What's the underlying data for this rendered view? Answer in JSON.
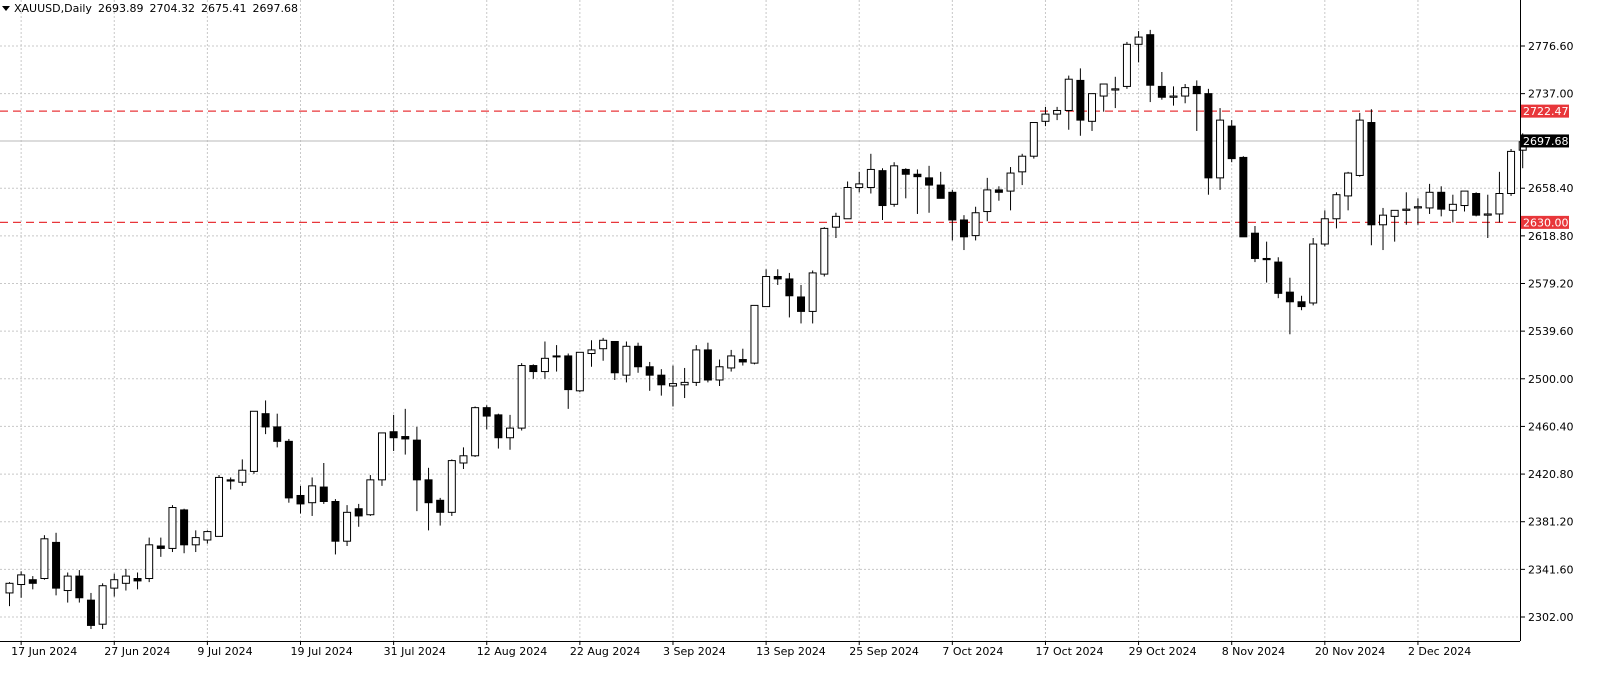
{
  "header": {
    "symbol_timeframe": "XAUUSD,Daily",
    "open": "2693.89",
    "high": "2704.32",
    "low": "2675.41",
    "close": "2697.68"
  },
  "chart_data": {
    "type": "candlestick",
    "symbol": "XAUUSD",
    "timeframe": "Daily",
    "ylim": [
      2285,
      2826
    ],
    "y_ticks": [
      "2776.60",
      "2737.00",
      "2658.40",
      "2618.80",
      "2579.20",
      "2539.60",
      "2500.00",
      "2460.40",
      "2420.80",
      "2381.20",
      "2341.60",
      "2302.00"
    ],
    "x_ticks": [
      "17 Jun 2024",
      "27 Jun 2024",
      "9 Jul 2024",
      "19 Jul 2024",
      "31 Jul 2024",
      "12 Aug 2024",
      "22 Aug 2024",
      "3 Sep 2024",
      "13 Sep 2024",
      "25 Sep 2024",
      "7 Oct 2024",
      "17 Oct 2024",
      "29 Oct 2024",
      "8 Nov 2024",
      "20 Nov 2024",
      "2 Dec 2024"
    ],
    "x_tick_index": [
      1,
      9,
      17,
      25,
      33,
      41,
      49,
      57,
      65,
      73,
      81,
      89,
      97,
      105,
      113,
      121
    ],
    "current_price": {
      "value": 2697.68,
      "label": "2697.68"
    },
    "levels": [
      {
        "value": 2722.47,
        "label": "2722.47",
        "color": "#e8363a"
      },
      {
        "value": 2630.0,
        "label": "2630.00",
        "color": "#e8363a"
      }
    ],
    "grid": true,
    "candles": [
      [
        2322,
        2331,
        2311,
        2330
      ],
      [
        2329,
        2340,
        2318,
        2337
      ],
      [
        2333,
        2336,
        2325,
        2330
      ],
      [
        2334,
        2370,
        2333,
        2367
      ],
      [
        2364,
        2372,
        2320,
        2326
      ],
      [
        2324,
        2339,
        2314,
        2336
      ],
      [
        2336,
        2341,
        2314,
        2318
      ],
      [
        2316,
        2322,
        2292,
        2295
      ],
      [
        2296,
        2330,
        2292,
        2328
      ],
      [
        2326,
        2338,
        2319,
        2333
      ],
      [
        2330,
        2342,
        2324,
        2336
      ],
      [
        2334,
        2339,
        2325,
        2332
      ],
      [
        2334,
        2368,
        2331,
        2362
      ],
      [
        2361,
        2368,
        2352,
        2359
      ],
      [
        2359,
        2395,
        2356,
        2393
      ],
      [
        2391,
        2392,
        2355,
        2362
      ],
      [
        2362,
        2374,
        2356,
        2368
      ],
      [
        2366,
        2374,
        2363,
        2373
      ],
      [
        2369,
        2420,
        2369,
        2418
      ],
      [
        2416,
        2418,
        2408,
        2415
      ],
      [
        2414,
        2433,
        2411,
        2424
      ],
      [
        2423,
        2473,
        2421,
        2473
      ],
      [
        2471,
        2482,
        2454,
        2460
      ],
      [
        2460,
        2471,
        2443,
        2448
      ],
      [
        2448,
        2450,
        2397,
        2401
      ],
      [
        2403,
        2411,
        2388,
        2396
      ],
      [
        2397,
        2418,
        2386,
        2411
      ],
      [
        2410,
        2430,
        2396,
        2398
      ],
      [
        2398,
        2400,
        2354,
        2365
      ],
      [
        2365,
        2395,
        2361,
        2389
      ],
      [
        2392,
        2396,
        2377,
        2386
      ],
      [
        2387,
        2420,
        2386,
        2416
      ],
      [
        2416,
        2454,
        2411,
        2455
      ],
      [
        2456,
        2470,
        2440,
        2451
      ],
      [
        2452,
        2475,
        2437,
        2450
      ],
      [
        2449,
        2460,
        2390,
        2416
      ],
      [
        2416,
        2426,
        2374,
        2397
      ],
      [
        2399,
        2401,
        2378,
        2389
      ],
      [
        2389,
        2433,
        2386,
        2432
      ],
      [
        2430,
        2443,
        2425,
        2436
      ],
      [
        2436,
        2477,
        2435,
        2476
      ],
      [
        2476,
        2478,
        2458,
        2469
      ],
      [
        2470,
        2471,
        2442,
        2451
      ],
      [
        2451,
        2470,
        2441,
        2459
      ],
      [
        2459,
        2513,
        2457,
        2511
      ],
      [
        2511,
        2512,
        2500,
        2506
      ],
      [
        2506,
        2531,
        2500,
        2517
      ],
      [
        2519,
        2528,
        2506,
        2519
      ],
      [
        2519,
        2521,
        2475,
        2491
      ],
      [
        2490,
        2522,
        2489,
        2522
      ],
      [
        2521,
        2532,
        2510,
        2524
      ],
      [
        2525,
        2534,
        2515,
        2532
      ],
      [
        2531,
        2531,
        2499,
        2505
      ],
      [
        2503,
        2531,
        2497,
        2527
      ],
      [
        2527,
        2530,
        2505,
        2510
      ],
      [
        2510,
        2514,
        2490,
        2503
      ],
      [
        2503,
        2508,
        2486,
        2495
      ],
      [
        2494,
        2511,
        2477,
        2496
      ],
      [
        2495,
        2509,
        2484,
        2497
      ],
      [
        2497,
        2528,
        2494,
        2524
      ],
      [
        2524,
        2530,
        2497,
        2499
      ],
      [
        2499,
        2516,
        2494,
        2510
      ],
      [
        2509,
        2524,
        2506,
        2519
      ],
      [
        2516,
        2525,
        2511,
        2514
      ],
      [
        2513,
        2561,
        2512,
        2561
      ],
      [
        2560,
        2591,
        2560,
        2585
      ],
      [
        2585,
        2591,
        2578,
        2583
      ],
      [
        2583,
        2588,
        2551,
        2569
      ],
      [
        2568,
        2578,
        2546,
        2556
      ],
      [
        2556,
        2590,
        2546,
        2588
      ],
      [
        2587,
        2626,
        2585,
        2625
      ],
      [
        2626,
        2638,
        2617,
        2635
      ],
      [
        2633,
        2664,
        2633,
        2659
      ],
      [
        2659,
        2672,
        2655,
        2662
      ],
      [
        2659,
        2687,
        2654,
        2674
      ],
      [
        2673,
        2675,
        2632,
        2644
      ],
      [
        2645,
        2680,
        2643,
        2677
      ],
      [
        2674,
        2675,
        2650,
        2670
      ],
      [
        2670,
        2674,
        2637,
        2668
      ],
      [
        2667,
        2677,
        2638,
        2661
      ],
      [
        2661,
        2672,
        2650,
        2650
      ],
      [
        2655,
        2657,
        2615,
        2632
      ],
      [
        2632,
        2636,
        2607,
        2618
      ],
      [
        2619,
        2643,
        2615,
        2638
      ],
      [
        2639,
        2667,
        2631,
        2657
      ],
      [
        2657,
        2660,
        2648,
        2655
      ],
      [
        2656,
        2676,
        2640,
        2671
      ],
      [
        2672,
        2687,
        2661,
        2685
      ],
      [
        2685,
        2713,
        2683,
        2713
      ],
      [
        2714,
        2726,
        2710,
        2720
      ],
      [
        2720,
        2726,
        2715,
        2723
      ],
      [
        2723,
        2752,
        2707,
        2749
      ],
      [
        2748,
        2758,
        2702,
        2715
      ],
      [
        2714,
        2737,
        2706,
        2737
      ],
      [
        2735,
        2745,
        2722,
        2745
      ],
      [
        2740,
        2751,
        2725,
        2741
      ],
      [
        2743,
        2780,
        2741,
        2778
      ],
      [
        2778,
        2789,
        2763,
        2784
      ],
      [
        2786,
        2790,
        2730,
        2744
      ],
      [
        2743,
        2755,
        2732,
        2734
      ],
      [
        2734,
        2743,
        2727,
        2735
      ],
      [
        2735,
        2745,
        2729,
        2742
      ],
      [
        2743,
        2748,
        2706,
        2737
      ],
      [
        2737,
        2741,
        2653,
        2667
      ],
      [
        2667,
        2725,
        2657,
        2715
      ],
      [
        2710,
        2715,
        2680,
        2683
      ],
      [
        2684,
        2685,
        2623,
        2618
      ],
      [
        2621,
        2627,
        2597,
        2600
      ],
      [
        2600,
        2614,
        2580,
        2599
      ],
      [
        2597,
        2601,
        2567,
        2571
      ],
      [
        2572,
        2584,
        2537,
        2564
      ],
      [
        2564,
        2569,
        2557,
        2560
      ],
      [
        2563,
        2617,
        2561,
        2612
      ],
      [
        2612,
        2640,
        2610,
        2633
      ],
      [
        2633,
        2655,
        2625,
        2653
      ],
      [
        2652,
        2672,
        2640,
        2671
      ],
      [
        2669,
        2721,
        2668,
        2715
      ],
      [
        2713,
        2724,
        2611,
        2628
      ],
      [
        2628,
        2642,
        2607,
        2636
      ],
      [
        2635,
        2639,
        2614,
        2640
      ],
      [
        2640,
        2655,
        2628,
        2641
      ],
      [
        2642,
        2650,
        2628,
        2643
      ],
      [
        2642,
        2662,
        2637,
        2655
      ],
      [
        2655,
        2660,
        2635,
        2641
      ],
      [
        2640,
        2653,
        2630,
        2645
      ],
      [
        2644,
        2652,
        2639,
        2656
      ],
      [
        2654,
        2655,
        2635,
        2636
      ],
      [
        2636,
        2653,
        2617,
        2637
      ],
      [
        2637,
        2672,
        2630,
        2654
      ],
      [
        2654,
        2691,
        2652,
        2689
      ],
      [
        2690,
        2704,
        2675,
        2697
      ]
    ]
  }
}
